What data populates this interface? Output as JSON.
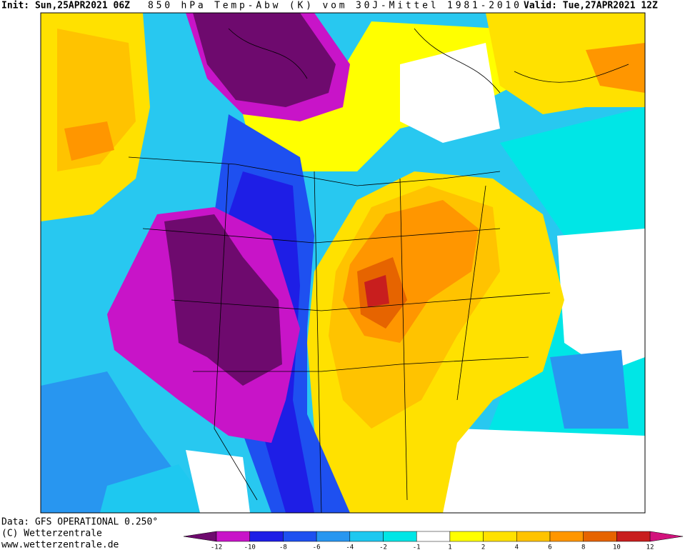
{
  "header": {
    "init": "Init: Sun,25APR2021 06Z",
    "title": "850 hPa Temp-Abw (K) vom 30J-Mittel 1981-2010",
    "valid": "Valid: Tue,27APR2021 12Z"
  },
  "footer": {
    "data": "Data: GFS OPERATIONAL 0.250°",
    "copyright": "(C) Wetterzentrale",
    "url": "www.wetterzentrale.de"
  },
  "colorbar": {
    "labels": [
      -12,
      -10,
      -8,
      -6,
      -4,
      -2,
      -1,
      1,
      2,
      4,
      6,
      8,
      10,
      12
    ],
    "colors": [
      "#6e0a6e",
      "#c814c8",
      "#1e1ee6",
      "#1e50f0",
      "#2896f0",
      "#1ec8f0",
      "#00e6e6",
      "#ffffff",
      "#ffff00",
      "#ffe100",
      "#ffc300",
      "#ff9600",
      "#e66400",
      "#c81e1e",
      "#d2127d"
    ]
  }
}
